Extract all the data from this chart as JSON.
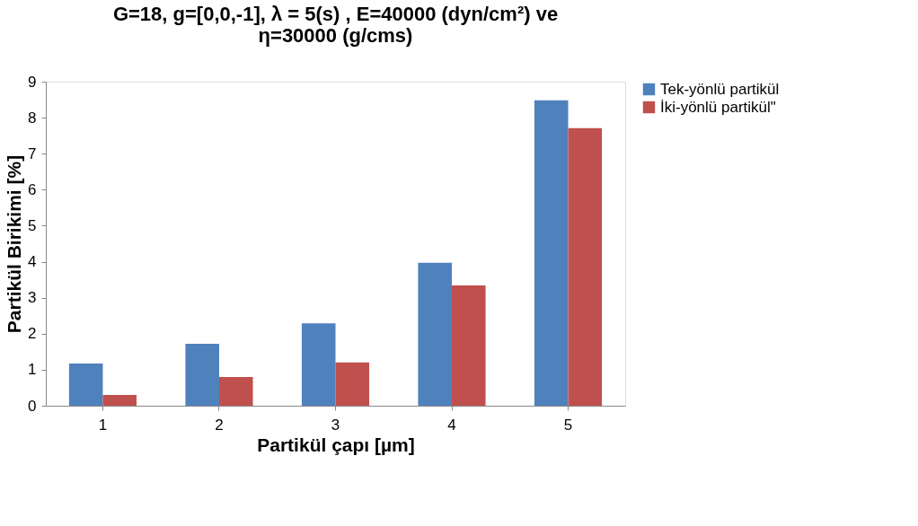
{
  "chart_data": {
    "type": "bar",
    "title": "G=18, g=[0,0,-1], λ = 5(s) , E=40000 (dyn/cm²) ve\nη=30000 (g/cms)",
    "xlabel": "Partikül çapı [µm]",
    "ylabel": "Partikül Birikimi [%]",
    "categories": [
      "1",
      "2",
      "3",
      "4",
      "5"
    ],
    "series": [
      {
        "name": "Tek-yönlü partikül",
        "color": "#4f81bd",
        "values": [
          1.17,
          1.72,
          2.29,
          3.97,
          8.48
        ]
      },
      {
        "name": "İki-yönlü partikül\"",
        "color": "#c0504d",
        "values": [
          0.3,
          0.8,
          1.2,
          3.34,
          7.71
        ]
      }
    ],
    "ylim": [
      0,
      9
    ],
    "yticks": [
      0,
      1,
      2,
      3,
      4,
      5,
      6,
      7,
      8,
      9
    ],
    "grid": false,
    "legend": "right"
  }
}
